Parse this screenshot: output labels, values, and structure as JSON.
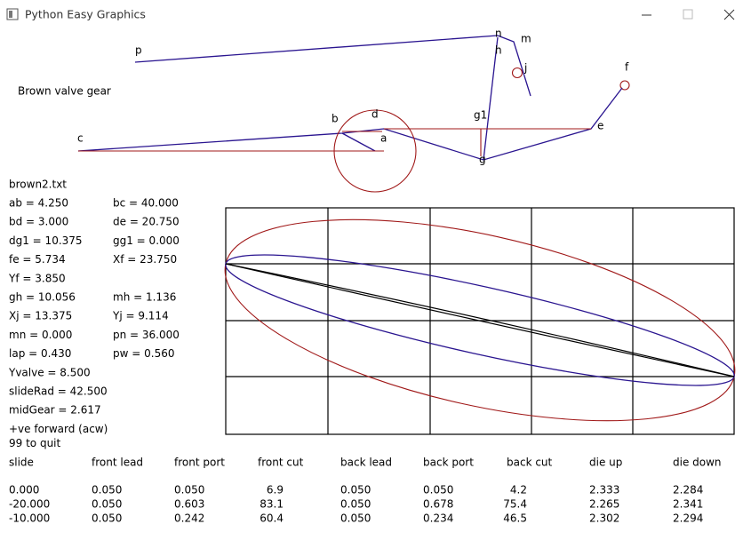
{
  "window": {
    "title": "Python Easy Graphics"
  },
  "diagram": {
    "caption": "Brown valve gear",
    "labels": {
      "p": "p",
      "n": "n",
      "m": "m",
      "h": "h",
      "j": "j",
      "f": "f",
      "e": "e",
      "g1": "g1",
      "g": "g",
      "b": "b",
      "d": "d",
      "a": "a",
      "c": "c"
    }
  },
  "parameters": {
    "file": "brown2.txt",
    "lines": [
      [
        "ab = 4.250",
        "bc = 40.000"
      ],
      [
        "bd = 3.000",
        "de = 20.750"
      ],
      [
        "dg1 = 10.375",
        "gg1 = 0.000"
      ],
      [
        "fe = 5.734",
        "Xf = 23.750"
      ],
      [
        "Yf = 3.850"
      ],
      [
        "gh = 10.056",
        "mh = 1.136"
      ],
      [
        "Xj = 13.375",
        "Yj = 9.114"
      ],
      [
        "mn = 0.000",
        "pn = 36.000"
      ],
      [
        "lap = 0.430",
        "pw = 0.560"
      ],
      [
        "Yvalve = 8.500"
      ],
      [
        "slideRad = 42.500"
      ],
      [
        "midGear = 2.617"
      ]
    ],
    "notes": [
      "+ve forward (acw)",
      "99 to quit"
    ]
  },
  "table": {
    "header": [
      "slide",
      "front lead",
      "front port",
      "front cut",
      "back lead",
      "back port",
      "back cut",
      "die up",
      "die down"
    ],
    "rows": [
      {
        "color": "#000000",
        "cells": [
          "0.000",
          "0.050",
          "0.050",
          "6.9",
          "0.050",
          "0.050",
          "4.2",
          "2.333",
          "2.284"
        ]
      },
      {
        "color": "#9b1020",
        "cells": [
          "-20.000",
          "0.050",
          "0.603",
          "83.1",
          "0.050",
          "0.678",
          "75.4",
          "2.265",
          "2.341"
        ]
      },
      {
        "color": "#2a1590",
        "cells": [
          "-10.000",
          "0.050",
          "0.242",
          "60.4",
          "0.050",
          "0.234",
          "46.5",
          "2.302",
          "2.294"
        ]
      }
    ]
  }
}
